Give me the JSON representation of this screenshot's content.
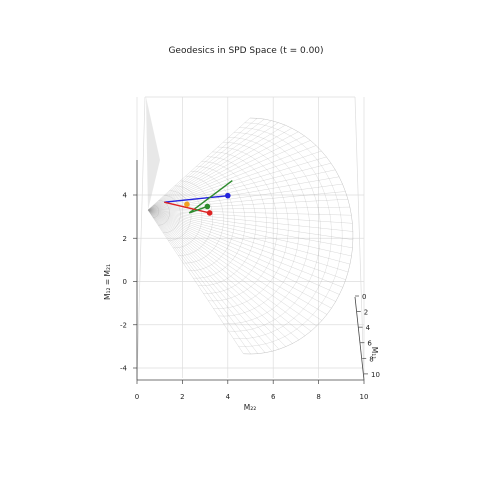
{
  "chart_data": {
    "type": "3d-surface-line",
    "title": "Geodesics in SPD Space (t = 0.00)",
    "axes": {
      "x": {
        "label": "M₂₂",
        "range": [
          0,
          10
        ],
        "ticks": [
          0,
          2,
          4,
          6,
          8,
          10
        ]
      },
      "y": {
        "label": "M₁₁",
        "range": [
          0,
          10
        ],
        "ticks": [
          0,
          2,
          4,
          6,
          8,
          10
        ]
      },
      "z": {
        "label": "M₁₂ = M₂₁",
        "range": [
          -5,
          5
        ],
        "ticks": [
          -4,
          -2,
          0,
          2,
          4
        ]
      }
    },
    "grid": true,
    "surface": {
      "description_color": "#9a9a9a"
    },
    "geodesics": [
      {
        "color": "#2222dd",
        "start": [
          1.2,
          1.0,
          3.3
        ],
        "end": [
          4.0,
          1.0,
          3.6
        ]
      },
      {
        "color": "#2e8b2e",
        "start": [
          2.3,
          1.0,
          2.8
        ],
        "end": [
          4.2,
          1.0,
          4.3
        ]
      },
      {
        "color": "#dd2222",
        "start": [
          1.2,
          1.0,
          3.3
        ],
        "end": [
          3.2,
          1.0,
          2.8
        ]
      },
      {
        "color": "#2e8b2e",
        "start": [
          2.3,
          1.0,
          2.8
        ],
        "end": [
          3.1,
          1.0,
          3.1
        ]
      }
    ],
    "markers": [
      {
        "color": "#2222dd",
        "point": [
          4.0,
          1.0,
          3.6
        ]
      },
      {
        "color": "#2e8b2e",
        "point": [
          3.1,
          1.0,
          3.1
        ]
      },
      {
        "color": "#dd2222",
        "point": [
          3.2,
          1.0,
          2.8
        ]
      },
      {
        "color": "#f0a020",
        "point": [
          2.2,
          1.0,
          3.2
        ]
      }
    ]
  }
}
